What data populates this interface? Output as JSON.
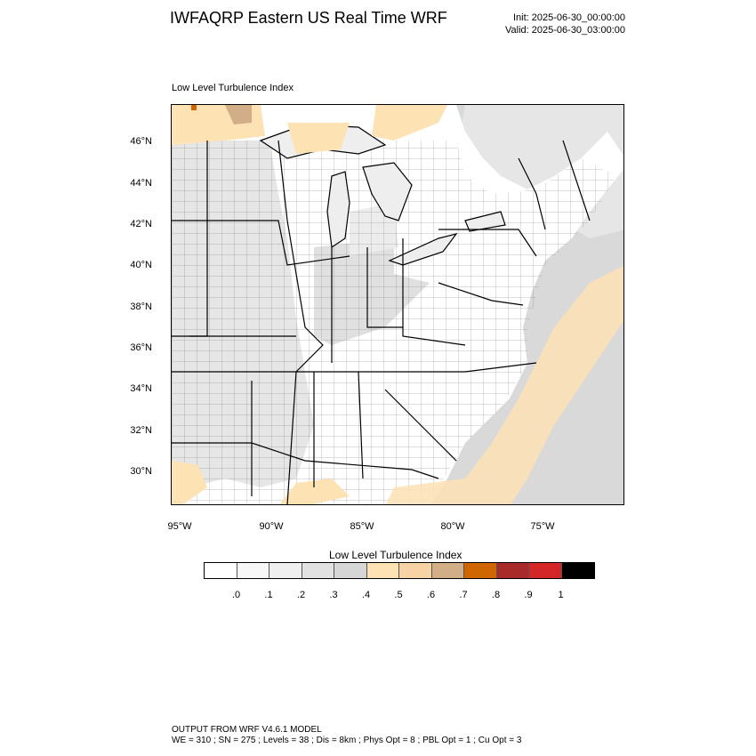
{
  "header": {
    "title": "IWFAQRP Eastern US Real Time WRF",
    "init": "Init: 2025-06-30_00:00:00",
    "valid": "Valid: 2025-06-30_03:00:00"
  },
  "panel": {
    "label": "Low Level Turbulence Index"
  },
  "axes": {
    "lat_labels": [
      "46°N",
      "44°N",
      "42°N",
      "40°N",
      "38°N",
      "36°N",
      "34°N",
      "32°N",
      "30°N"
    ],
    "lon_labels": [
      "95°W",
      "90°W",
      "85°W",
      "80°W",
      "75°W"
    ]
  },
  "colorbar": {
    "title": "Low Level Turbulence Index",
    "colors": [
      "#ffffff",
      "#f7f7f7",
      "#efefef",
      "#e2e2e2",
      "#d6d6d6",
      "#fde2b4",
      "#f6d2a4",
      "#d2ae88",
      "#d06600",
      "#a82a2a",
      "#d42626",
      "#000000"
    ],
    "labels": [
      ".0",
      ".1",
      ".2",
      ".3",
      ".4",
      ".5",
      ".6",
      ".7",
      ".8",
      ".9",
      "1"
    ]
  },
  "footer": {
    "line1": "OUTPUT FROM WRF V4.6.1 MODEL",
    "line2": "WE = 310 ; SN = 275 ; Levels = 38 ; Dis = 8km ; Phys Opt = 8 ; PBL Opt = 1 ; Cu Opt = 3"
  }
}
